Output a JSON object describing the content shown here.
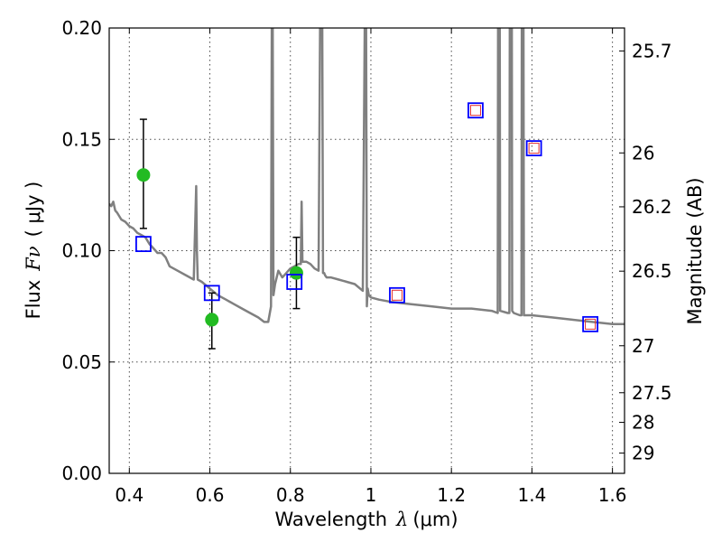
{
  "chart_data": {
    "type": "scatter",
    "xlabel_prefix": "Wavelength",
    "xlabel_symbol": "λ",
    "xlabel_unit": "(μm)",
    "ylabel_prefix": "Flux",
    "ylabel_symbol": "Fν",
    "ylabel_unit": "( μJy )",
    "ylabel_right": "Magnitude (AB)",
    "xlim": [
      0.35,
      1.63
    ],
    "ylim": [
      0.0,
      0.2
    ],
    "grid": true,
    "x_ticks": [
      0.4,
      0.6,
      0.8,
      1.0,
      1.2,
      1.4,
      1.6
    ],
    "x_tick_labels": [
      "0.4",
      "0.6",
      "0.8",
      "1",
      "1.2",
      "1.4",
      "1.6"
    ],
    "y_ticks": [
      0.0,
      0.05,
      0.1,
      0.15,
      0.2
    ],
    "y_tick_labels": [
      "0.00",
      "0.05",
      "0.10",
      "0.15",
      "0.20"
    ],
    "right_ticks": [
      {
        "label": "25.7",
        "flux": 0.1897
      },
      {
        "label": "26",
        "flux": 0.1439
      },
      {
        "label": "26.2",
        "flux": 0.1197
      },
      {
        "label": "26.5",
        "flux": 0.0908
      },
      {
        "label": "27",
        "flux": 0.0573
      },
      {
        "label": "27.5",
        "flux": 0.0362
      },
      {
        "label": "28",
        "flux": 0.0229
      },
      {
        "label": "29",
        "flux": 0.0091
      }
    ],
    "series": [
      {
        "kind": "line",
        "color": "#808080",
        "x": [
          0.35,
          0.355,
          0.36,
          0.365,
          0.37,
          0.38,
          0.39,
          0.4,
          0.41,
          0.42,
          0.43,
          0.44,
          0.45,
          0.46,
          0.47,
          0.48,
          0.49,
          0.5,
          0.52,
          0.54,
          0.56,
          0.566,
          0.568,
          0.57,
          0.58,
          0.6,
          0.62,
          0.64,
          0.66,
          0.68,
          0.7,
          0.72,
          0.735,
          0.745,
          0.752,
          0.754,
          0.755,
          0.756,
          0.758,
          0.762,
          0.77,
          0.78,
          0.79,
          0.8,
          0.81,
          0.82,
          0.826,
          0.828,
          0.83,
          0.84,
          0.85,
          0.86,
          0.87,
          0.874,
          0.876,
          0.879,
          0.881,
          0.884,
          0.886,
          0.89,
          0.9,
          0.92,
          0.94,
          0.96,
          0.98,
          0.985,
          0.988,
          0.99,
          0.992,
          0.995,
          1.0,
          1.02,
          1.05,
          1.1,
          1.15,
          1.2,
          1.25,
          1.3,
          1.315,
          1.316,
          1.317,
          1.319,
          1.32,
          1.321,
          1.34,
          1.344,
          1.345,
          1.35,
          1.351,
          1.355,
          1.37,
          1.374,
          1.375,
          1.379,
          1.38,
          1.4,
          1.45,
          1.5,
          1.55,
          1.6,
          1.63
        ],
        "y": [
          0.121,
          0.12,
          0.122,
          0.118,
          0.117,
          0.114,
          0.113,
          0.111,
          0.11,
          0.108,
          0.107,
          0.106,
          0.103,
          0.101,
          0.099,
          0.099,
          0.097,
          0.093,
          0.091,
          0.089,
          0.087,
          0.129,
          0.1,
          0.087,
          0.086,
          0.083,
          0.08,
          0.078,
          0.076,
          0.074,
          0.072,
          0.07,
          0.068,
          0.068,
          0.075,
          0.21,
          0.21,
          0.21,
          0.08,
          0.085,
          0.091,
          0.088,
          0.09,
          0.092,
          0.093,
          0.094,
          0.094,
          0.122,
          0.095,
          0.095,
          0.094,
          0.092,
          0.091,
          0.21,
          0.21,
          0.21,
          0.09,
          0.09,
          0.089,
          0.088,
          0.088,
          0.087,
          0.086,
          0.085,
          0.082,
          0.21,
          0.21,
          0.075,
          0.083,
          0.08,
          0.079,
          0.078,
          0.077,
          0.076,
          0.075,
          0.074,
          0.074,
          0.073,
          0.072,
          0.21,
          0.21,
          0.21,
          0.21,
          0.073,
          0.072,
          0.072,
          0.21,
          0.21,
          0.073,
          0.072,
          0.071,
          0.071,
          0.21,
          0.21,
          0.071,
          0.071,
          0.07,
          0.069,
          0.068,
          0.067,
          0.067
        ]
      },
      {
        "kind": "points",
        "marker": "circle",
        "color": "#22bb22",
        "x": [
          0.435,
          0.605,
          0.815
        ],
        "y": [
          0.134,
          0.069,
          0.09
        ],
        "err_low": [
          0.11,
          0.056,
          0.074
        ],
        "err_high": [
          0.159,
          0.081,
          0.106
        ]
      },
      {
        "kind": "points",
        "marker": "square-open",
        "color": "#0000ff",
        "x": [
          0.435,
          0.605,
          0.81,
          1.065,
          1.26,
          1.405,
          1.545
        ],
        "y": [
          0.103,
          0.081,
          0.086,
          0.08,
          0.163,
          0.146,
          0.067
        ]
      },
      {
        "kind": "points",
        "marker": "square-open-small",
        "color": "#e03030",
        "x": [
          1.065,
          1.26,
          1.405,
          1.545
        ],
        "y": [
          0.08,
          0.163,
          0.146,
          0.067
        ]
      }
    ]
  }
}
